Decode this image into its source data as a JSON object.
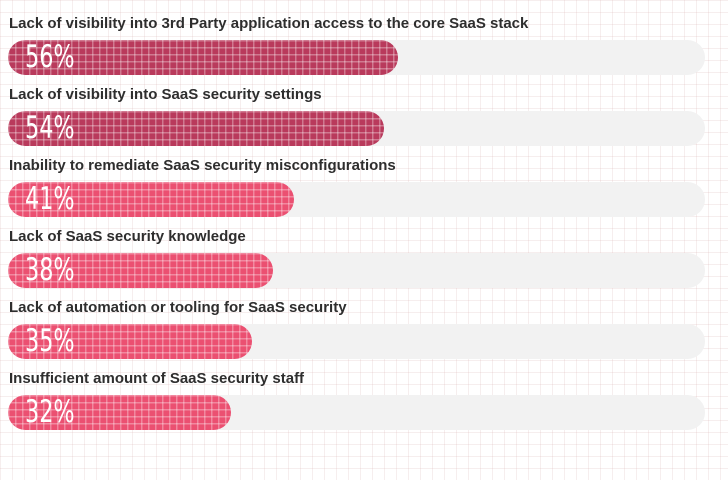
{
  "chart_data": {
    "type": "bar",
    "orientation": "horizontal",
    "title": "",
    "xlabel": "",
    "ylabel": "",
    "xlim": [
      0,
      100
    ],
    "grid": false,
    "legend": "none",
    "value_suffix": "%",
    "categories": [
      "Lack of visibility into 3rd Party application access to the core SaaS stack",
      "Lack of visibility into SaaS security settings",
      "Inability to remediate SaaS security misconfigurations",
      "Lack of SaaS security knowledge",
      "Lack of automation or tooling for SaaS security",
      "Insufficient amount of SaaS security staff"
    ],
    "values": [
      56,
      54,
      41,
      38,
      35,
      32
    ],
    "value_labels": [
      "56%",
      "54%",
      "41%",
      "38%",
      "35%",
      "32%"
    ],
    "bar_colors": [
      "#b93a5c",
      "#b93a5c",
      "#eb5071",
      "#eb5071",
      "#eb5071",
      "#eb5071"
    ],
    "track_color": "#f2f2f2",
    "label_color": "#2e2e2e",
    "value_label_color": "#ffffff",
    "bar_texture": "crosshatch-grid"
  }
}
